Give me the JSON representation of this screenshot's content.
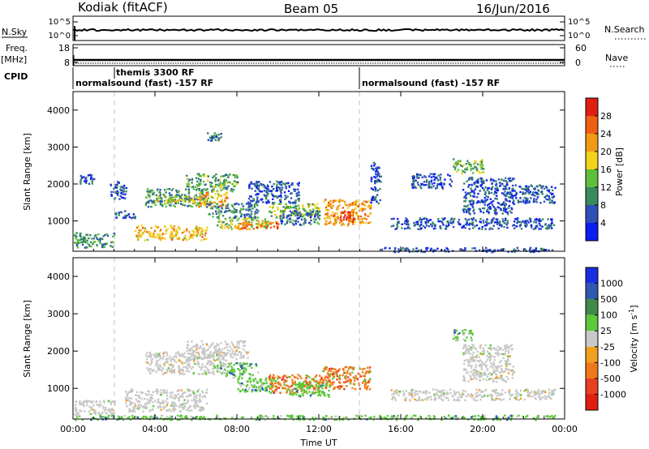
{
  "header": {
    "station": "Kodiak (fitACF)",
    "beam": "Beam 05",
    "date": "16/Jun/2016"
  },
  "top_panels": {
    "nsky_label": "N.Sky",
    "nsky_ticks": [
      "10^5",
      "10^0"
    ],
    "nsearch_label": "N.Search",
    "nsearch_ticks": [
      "10^5",
      "10^0"
    ],
    "freq_label_1": "Freq.",
    "freq_label_2": "[MHz]",
    "freq_ticks": [
      "18",
      "8"
    ],
    "nave_label": "Nave",
    "nave_ticks": [
      "60",
      "0"
    ],
    "cpid_label": "CPID",
    "cpid_entries": [
      {
        "text": "themis 3300 RF",
        "start_hour": 2.0
      },
      {
        "text": "normalsound (fast) -157 RF",
        "start_hour": 0.0
      },
      {
        "text": "normalsound (fast) -157 RF",
        "start_hour": 14.0
      }
    ]
  },
  "chart_data": [
    {
      "type": "heatmap",
      "title": "",
      "xlabel": "",
      "ylabel": "Slant Range [km]",
      "xlim": [
        0,
        24
      ],
      "ylim": [
        180,
        4500
      ],
      "xtick_labels": [
        "00:00",
        "04:00",
        "08:00",
        "12:00",
        "16:00",
        "20:00",
        "00:00"
      ],
      "ytick_values": [
        1000,
        2000,
        3000,
        4000
      ],
      "ytick_labels": [
        "1000",
        "2000",
        "3000",
        "4000"
      ],
      "colorbar": {
        "label": "Power [dB]",
        "range": [
          0,
          32
        ],
        "tick_labels": [
          "4",
          "8",
          "12",
          "16",
          "20",
          "24",
          "28"
        ],
        "colors": [
          "#0a1ef0",
          "#2f50b8",
          "#3a8a60",
          "#5fbe3c",
          "#f2d21c",
          "#f29a16",
          "#f06012",
          "#e01e12"
        ]
      },
      "echo_regions": [
        {
          "t0": 0.0,
          "t1": 2.0,
          "r0": 300,
          "r1": 700,
          "value": 10
        },
        {
          "t0": 0.3,
          "t1": 1.0,
          "r0": 2000,
          "r1": 2300,
          "value": 6
        },
        {
          "t0": 1.8,
          "t1": 2.6,
          "r0": 1600,
          "r1": 2100,
          "value": 5
        },
        {
          "t0": 2.0,
          "t1": 3.0,
          "r0": 1100,
          "r1": 1300,
          "value": 6
        },
        {
          "t0": 3.0,
          "t1": 6.5,
          "r0": 500,
          "r1": 900,
          "value": 20
        },
        {
          "t0": 3.5,
          "t1": 6.5,
          "r0": 1400,
          "r1": 1900,
          "value": 10
        },
        {
          "t0": 4.0,
          "t1": 6.5,
          "r0": 1500,
          "r1": 1700,
          "value": 17
        },
        {
          "t0": 5.5,
          "t1": 8.0,
          "r0": 1800,
          "r1": 2300,
          "value": 12
        },
        {
          "t0": 6.0,
          "t1": 7.5,
          "r0": 1400,
          "r1": 1800,
          "value": 20
        },
        {
          "t0": 6.5,
          "t1": 9.0,
          "r0": 1100,
          "r1": 1500,
          "value": 9
        },
        {
          "t0": 7.0,
          "t1": 9.5,
          "r0": 800,
          "r1": 1100,
          "value": 16
        },
        {
          "t0": 8.0,
          "t1": 10.0,
          "r0": 800,
          "r1": 1000,
          "value": 25
        },
        {
          "t0": 8.5,
          "t1": 11.0,
          "r0": 1500,
          "r1": 2100,
          "value": 6
        },
        {
          "t0": 9.5,
          "t1": 12.0,
          "r0": 1100,
          "r1": 1500,
          "value": 15
        },
        {
          "t0": 10.0,
          "t1": 12.0,
          "r0": 900,
          "r1": 1300,
          "value": 8
        },
        {
          "t0": 12.2,
          "t1": 14.5,
          "r0": 900,
          "r1": 1600,
          "value": 22
        },
        {
          "t0": 13.0,
          "t1": 14.0,
          "r0": 1000,
          "r1": 1300,
          "value": 28
        },
        {
          "t0": 14.5,
          "t1": 15.0,
          "r0": 1500,
          "r1": 2600,
          "value": 6
        },
        {
          "t0": 15.5,
          "t1": 23.5,
          "r0": 800,
          "r1": 1100,
          "value": 6
        },
        {
          "t0": 15.0,
          "t1": 23.5,
          "r0": 180,
          "r1": 300,
          "value": 5
        },
        {
          "t0": 16.5,
          "t1": 18.5,
          "r0": 1900,
          "r1": 2300,
          "value": 5
        },
        {
          "t0": 18.5,
          "t1": 20.0,
          "r0": 2300,
          "r1": 2700,
          "value": 14
        },
        {
          "t0": 19.0,
          "t1": 21.5,
          "r0": 1200,
          "r1": 2200,
          "value": 6
        },
        {
          "t0": 21.5,
          "t1": 23.5,
          "r0": 1500,
          "r1": 2000,
          "value": 6
        },
        {
          "t0": 6.5,
          "t1": 7.2,
          "r0": 3200,
          "r1": 3400,
          "value": 8
        }
      ]
    },
    {
      "type": "heatmap",
      "title": "",
      "xlabel": "Time UT",
      "ylabel": "Slant Range [km]",
      "xlim": [
        0,
        24
      ],
      "ylim": [
        180,
        4500
      ],
      "xtick_labels": [
        "00:00",
        "04:00",
        "08:00",
        "12:00",
        "16:00",
        "20:00",
        "00:00"
      ],
      "ytick_values": [
        1000,
        2000,
        3000,
        4000
      ],
      "ytick_labels": [
        "1000",
        "2000",
        "3000",
        "4000"
      ],
      "colorbar": {
        "label": "Velocity [m s^-1]",
        "tick_labels": [
          "1000",
          "500",
          "100",
          "25",
          "-25",
          "-100",
          "-500",
          "-1000"
        ],
        "colors": [
          "#1a2ee0",
          "#2f58b0",
          "#3f8a48",
          "#5cc83a",
          "#c8c8c8",
          "#f2a020",
          "#f07818",
          "#e84020",
          "#e01e12"
        ]
      },
      "echo_regions": [
        {
          "t0": 0.0,
          "t1": 2.0,
          "r0": 300,
          "r1": 700,
          "value": 25
        },
        {
          "t0": 2.5,
          "t1": 6.5,
          "r0": 400,
          "r1": 1000,
          "value": 25
        },
        {
          "t0": 3.5,
          "t1": 7.5,
          "r0": 1400,
          "r1": 2000,
          "value": 25
        },
        {
          "t0": 5.5,
          "t1": 8.5,
          "r0": 1800,
          "r1": 2300,
          "value": 25
        },
        {
          "t0": 7.0,
          "t1": 9.0,
          "r0": 1300,
          "r1": 1700,
          "value": 100
        },
        {
          "t0": 8.0,
          "t1": 10.0,
          "r0": 900,
          "r1": 1300,
          "value": 100
        },
        {
          "t0": 9.5,
          "t1": 12.0,
          "r0": 900,
          "r1": 1400,
          "value": -100
        },
        {
          "t0": 12.0,
          "t1": 14.5,
          "r0": 1000,
          "r1": 1600,
          "value": -100
        },
        {
          "t0": 10.5,
          "t1": 12.5,
          "r0": 800,
          "r1": 1200,
          "value": 100
        },
        {
          "t0": 15.5,
          "t1": 23.5,
          "r0": 700,
          "r1": 1000,
          "value": 25
        },
        {
          "t0": 18.5,
          "t1": 19.5,
          "r0": 2300,
          "r1": 2600,
          "value": 100
        },
        {
          "t0": 19.0,
          "t1": 21.5,
          "r0": 1200,
          "r1": 2200,
          "value": 25
        },
        {
          "t0": 0.0,
          "t1": 23.5,
          "r0": 180,
          "r1": 300,
          "value": 100
        }
      ]
    }
  ]
}
